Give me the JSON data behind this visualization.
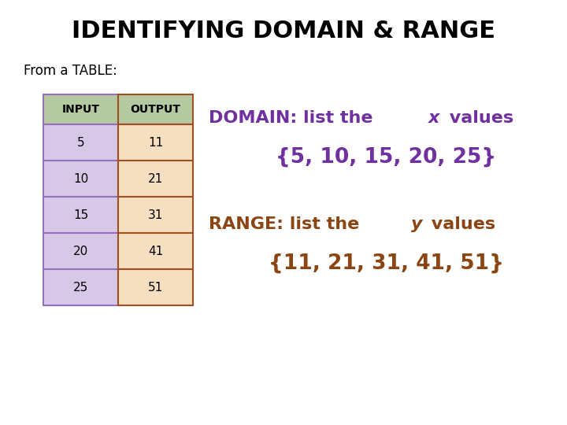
{
  "title": "IDENTIFYING DOMAIN & RANGE",
  "subtitle": "From a TABLE:",
  "inputs": [
    5,
    10,
    15,
    20,
    25
  ],
  "outputs": [
    11,
    21,
    31,
    41,
    51
  ],
  "header_input": "INPUT",
  "header_output": "OUTPUT",
  "header_bg": "#b5c9a0",
  "input_bg": "#d8c8e8",
  "output_bg": "#f5dfc0",
  "input_border": "#9370bb",
  "output_border": "#a05020",
  "domain_color": "#7030a0",
  "range_color": "#8b4513",
  "domain_line1_plain": "DOMAIN: list the ",
  "domain_line1_italic": "x",
  "domain_line1_end": " values",
  "domain_set": "{5, 10, 15, 20, 25}",
  "range_line1_plain": "RANGE: list the ",
  "range_line1_italic": "y",
  "range_line1_end": " values",
  "range_set": "{11, 21, 31, 41, 51}",
  "bg_color": "#ffffff",
  "title_fontsize": 22,
  "subtitle_fontsize": 12,
  "table_header_fontsize": 10,
  "table_data_fontsize": 11,
  "annotation_fontsize": 16,
  "set_fontsize": 19
}
